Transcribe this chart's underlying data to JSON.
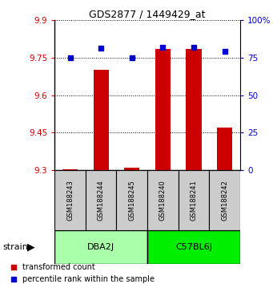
{
  "title": "GDS2877 / 1449429_at",
  "samples": [
    "GSM188243",
    "GSM188244",
    "GSM188245",
    "GSM188240",
    "GSM188241",
    "GSM188242"
  ],
  "red_values": [
    9.303,
    9.7,
    9.312,
    9.783,
    9.783,
    9.47
  ],
  "blue_values": [
    75,
    81,
    75,
    82,
    82,
    79
  ],
  "y_min": 9.3,
  "y_max": 9.9,
  "y_ticks": [
    9.3,
    9.45,
    9.6,
    9.75,
    9.9
  ],
  "y2_ticks": [
    0,
    25,
    50,
    75,
    100
  ],
  "y2_labels": [
    "0",
    "25",
    "50",
    "75",
    "100%"
  ],
  "groups": [
    {
      "label": "DBA2J",
      "indices": [
        0,
        1,
        2
      ],
      "color": "#aaffaa"
    },
    {
      "label": "C57BL6J",
      "indices": [
        3,
        4,
        5
      ],
      "color": "#00ee00"
    }
  ],
  "group_label": "strain",
  "bar_color": "#cc0000",
  "dot_color": "#0000cc",
  "bar_width": 0.5,
  "dot_size": 25,
  "legend_red": "transformed count",
  "legend_blue": "percentile rank within the sample",
  "bg_color": "#ffffff",
  "sample_box_color": "#cccccc",
  "left_label_color": "#cc0000",
  "right_label_color": "#0000cc"
}
